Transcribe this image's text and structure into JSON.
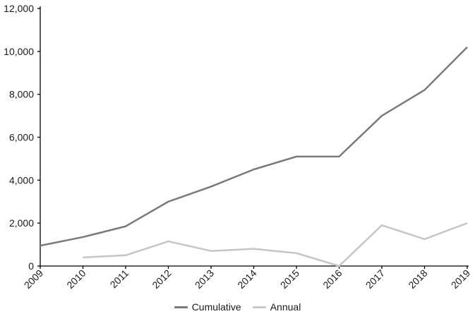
{
  "chart_data": {
    "type": "line",
    "title": "",
    "xlabel": "",
    "ylabel": "",
    "categories": [
      "2009",
      "2010",
      "2011",
      "2012",
      "2013",
      "2014",
      "2015",
      "2016",
      "2017",
      "2018",
      "2019"
    ],
    "series": [
      {
        "name": "Cumulative",
        "color": "#7a7a7a",
        "values": [
          950,
          1350,
          1850,
          3000,
          3700,
          4500,
          5100,
          5100,
          7000,
          8200,
          10200
        ]
      },
      {
        "name": "Annual",
        "color": "#c6c6c6",
        "values": [
          null,
          400,
          500,
          1150,
          700,
          800,
          600,
          0,
          1900,
          1250,
          2000
        ]
      }
    ],
    "ylim": [
      0,
      12000
    ],
    "y_ticks": [
      {
        "value": 0,
        "label": "0"
      },
      {
        "value": 2000,
        "label": "2,000"
      },
      {
        "value": 4000,
        "label": "4,000"
      },
      {
        "value": 6000,
        "label": "6,000"
      },
      {
        "value": 8000,
        "label": "8,000"
      },
      {
        "value": 10000,
        "label": "10,000"
      },
      {
        "value": 12000,
        "label": "12,000"
      }
    ],
    "grid": "off",
    "legend_position": "bottom-center",
    "x_label_rotation_deg": -45,
    "axis_color": "#000000",
    "text_color": "#1a1a1a"
  },
  "legend": {
    "items": [
      {
        "label": "Cumulative",
        "color": "#7a7a7a"
      },
      {
        "label": "Annual",
        "color": "#c6c6c6"
      }
    ]
  }
}
